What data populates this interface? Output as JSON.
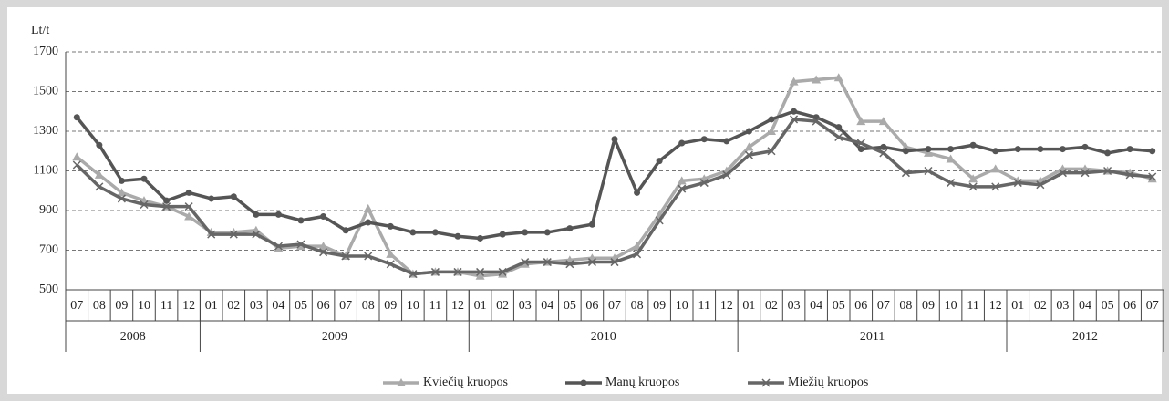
{
  "chart_data": {
    "type": "line",
    "y_label": "Lt/t",
    "groups": [
      {
        "label": "2008",
        "categories": [
          "07",
          "08",
          "09",
          "10",
          "11",
          "12"
        ]
      },
      {
        "label": "2009",
        "categories": [
          "01",
          "02",
          "03",
          "04",
          "05",
          "06",
          "07",
          "08",
          "09",
          "10",
          "11",
          "12"
        ]
      },
      {
        "label": "2010",
        "categories": [
          "01",
          "02",
          "03",
          "04",
          "05",
          "06",
          "07",
          "08",
          "09",
          "10",
          "11",
          "12"
        ]
      },
      {
        "label": "2011",
        "categories": [
          "01",
          "02",
          "03",
          "04",
          "05",
          "06",
          "07",
          "08",
          "09",
          "10",
          "11",
          "12"
        ]
      },
      {
        "label": "2012",
        "categories": [
          "01",
          "02",
          "03",
          "04",
          "05",
          "06",
          "07"
        ]
      }
    ],
    "series": [
      {
        "name": "Kviečių kruopos",
        "color": "#aaaaaa",
        "marker": "triangle",
        "values": [
          1170,
          1080,
          990,
          950,
          920,
          870,
          790,
          790,
          800,
          710,
          720,
          720,
          670,
          910,
          680,
          580,
          590,
          590,
          570,
          580,
          630,
          640,
          650,
          660,
          660,
          720,
          880,
          1050,
          1060,
          1100,
          1220,
          1300,
          1550,
          1560,
          1570,
          1350,
          1350,
          1220,
          1190,
          1160,
          1060,
          1110,
          1050,
          1050,
          1110,
          1110,
          1100,
          1090,
          1060
        ]
      },
      {
        "name": "Manų  kruopos",
        "color": "#555555",
        "marker": "circle",
        "values": [
          1370,
          1230,
          1050,
          1060,
          950,
          990,
          960,
          970,
          880,
          880,
          850,
          870,
          800,
          840,
          820,
          790,
          790,
          770,
          760,
          780,
          790,
          790,
          810,
          830,
          1260,
          990,
          1150,
          1240,
          1260,
          1250,
          1300,
          1360,
          1400,
          1370,
          1320,
          1210,
          1220,
          1200,
          1210,
          1210,
          1230,
          1200,
          1210,
          1210,
          1210,
          1220,
          1190,
          1210,
          1200
        ]
      },
      {
        "name": "Miežių  kruopos",
        "color": "#666666",
        "marker": "x",
        "values": [
          1130,
          1020,
          960,
          930,
          920,
          920,
          780,
          780,
          780,
          720,
          730,
          690,
          670,
          670,
          630,
          580,
          590,
          590,
          590,
          590,
          640,
          640,
          630,
          640,
          640,
          680,
          850,
          1010,
          1040,
          1080,
          1180,
          1200,
          1360,
          1350,
          1270,
          1240,
          1190,
          1090,
          1100,
          1040,
          1020,
          1020,
          1040,
          1030,
          1090,
          1090,
          1100,
          1080,
          1070
        ]
      }
    ],
    "ylim": [
      500,
      1700
    ],
    "yticks": [
      500,
      700,
      900,
      1100,
      1300,
      1500,
      1700
    ],
    "grid": true
  }
}
